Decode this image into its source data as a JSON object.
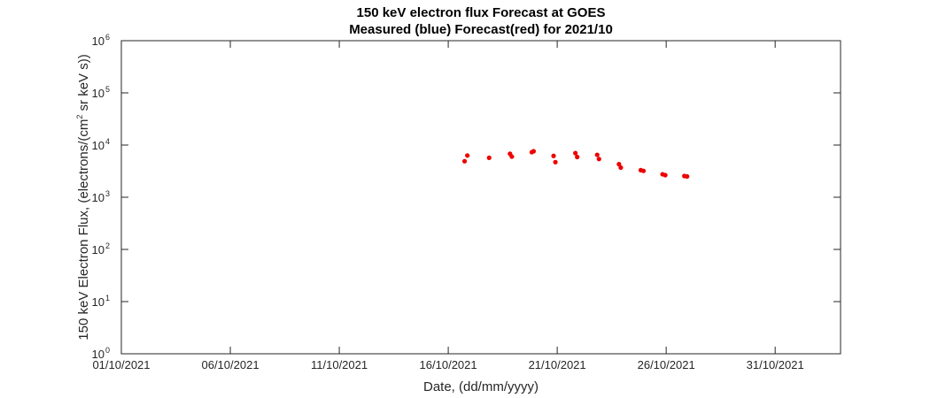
{
  "chart_data": {
    "type": "scatter",
    "title": "150 keV electron flux Forecast at GOES",
    "subtitle": "Measured (blue) Forecast(red) for 2021/10",
    "xlabel": "Date, (dd/mm/yyyy)",
    "ylabel_main": "150 keV Electron Flux, (electrons/(cm",
    "ylabel_exp": "2",
    "ylabel_tail": " sr keV s))",
    "x_scale": "date",
    "xlim": [
      "2021-10-01",
      "2021-11-03"
    ],
    "x_ticks": [
      "2021-10-01",
      "2021-10-06",
      "2021-10-11",
      "2021-10-16",
      "2021-10-21",
      "2021-10-26",
      "2021-10-31"
    ],
    "x_tick_labels": [
      "01/10/2021",
      "06/10/2021",
      "11/10/2021",
      "16/10/2021",
      "21/10/2021",
      "26/10/2021",
      "31/10/2021"
    ],
    "y_scale": "log",
    "ylim": [
      1,
      1000000
    ],
    "y_tick_exponents": [
      "0",
      "1",
      "2",
      "3",
      "4",
      "5",
      "6"
    ],
    "y_tick_base": "10",
    "grid": false,
    "series": [
      {
        "color": "#ee0000",
        "points": [
          {
            "x": "2021-10-16T18:00",
            "y": 4900
          },
          {
            "x": "2021-10-16T21:00",
            "y": 6300
          },
          {
            "x": "2021-10-17T21:00",
            "y": 5700
          },
          {
            "x": "2021-10-18T20:00",
            "y": 6800
          },
          {
            "x": "2021-10-18T22:00",
            "y": 6000
          },
          {
            "x": "2021-10-19T20:00",
            "y": 7300
          },
          {
            "x": "2021-10-19T22:00",
            "y": 7600
          },
          {
            "x": "2021-10-20T20:00",
            "y": 6200
          },
          {
            "x": "2021-10-20T22:00",
            "y": 4700
          },
          {
            "x": "2021-10-21T20:00",
            "y": 7000
          },
          {
            "x": "2021-10-21T22:00",
            "y": 5900
          },
          {
            "x": "2021-10-22T20:00",
            "y": 6500
          },
          {
            "x": "2021-10-22T22:00",
            "y": 5400
          },
          {
            "x": "2021-10-23T20:00",
            "y": 4300
          },
          {
            "x": "2021-10-23T22:00",
            "y": 3700
          },
          {
            "x": "2021-10-24T20:00",
            "y": 3300
          },
          {
            "x": "2021-10-24T23:00",
            "y": 3200
          },
          {
            "x": "2021-10-25T20:00",
            "y": 2750
          },
          {
            "x": "2021-10-25T23:00",
            "y": 2650
          },
          {
            "x": "2021-10-26T20:00",
            "y": 2550
          },
          {
            "x": "2021-10-26T23:00",
            "y": 2500
          }
        ]
      }
    ]
  }
}
